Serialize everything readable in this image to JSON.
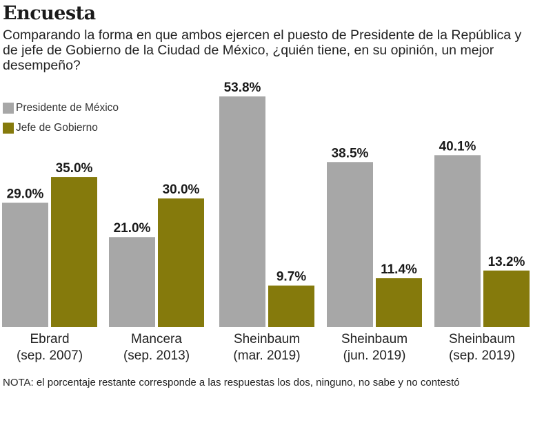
{
  "chart_data": {
    "type": "bar",
    "title": "Encuesta",
    "subtitle": "Comparando la forma en que ambos ejercen el puesto de Presidente de la República y de jefe de Gobierno de la Ciudad de México, ¿quién tiene, en su opinión, un mejor desempeño?",
    "categories": [
      {
        "name": "Ebrard",
        "date": "(sep. 2007)"
      },
      {
        "name": "Mancera",
        "date": "(sep. 2013)"
      },
      {
        "name": "Sheinbaum",
        "date": "(mar. 2019)"
      },
      {
        "name": "Sheinbaum",
        "date": "(jun. 2019)"
      },
      {
        "name": "Sheinbaum",
        "date": "(sep. 2019)"
      }
    ],
    "series": [
      {
        "name": "Presidente de México",
        "color": "#a7a7a7",
        "values": [
          29.0,
          21.0,
          53.8,
          38.5,
          40.1
        ],
        "labels": [
          "29.0%",
          "21.0%",
          "53.8%",
          "38.5%",
          "40.1%"
        ]
      },
      {
        "name": "Jefe de Gobierno",
        "color": "#857a0c",
        "values": [
          35.0,
          30.0,
          9.7,
          11.4,
          13.2
        ],
        "labels": [
          "35.0%",
          "30.0%",
          "9.7%",
          "11.4%",
          "13.2%"
        ]
      }
    ],
    "unit": "%",
    "ylim": [
      0,
      53.8
    ],
    "grid": false,
    "legend": "top-left",
    "note": "NOTA: el porcentaje restante corresponde a las respuestas los dos, ninguno, no sabe y no contestó"
  }
}
